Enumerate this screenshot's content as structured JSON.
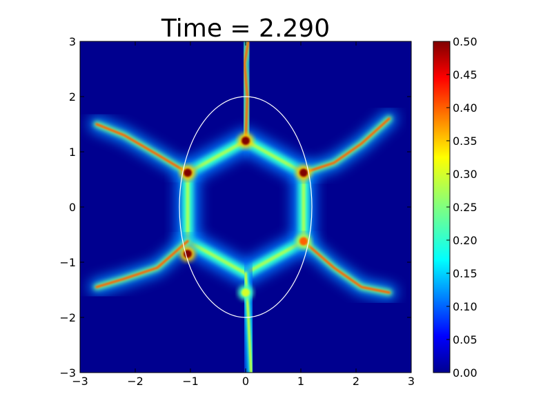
{
  "chart_data": {
    "type": "heatmap",
    "title": "Time = 2.290",
    "xlabel": "",
    "ylabel": "",
    "xlim": [
      -3,
      3
    ],
    "ylim": [
      -3,
      3
    ],
    "x_ticks": [
      "−3",
      "−2",
      "−1",
      "0",
      "1",
      "2",
      "3"
    ],
    "y_ticks": [
      "−3",
      "−2",
      "−1",
      "0",
      "1",
      "2",
      "3"
    ],
    "x_tick_values": [
      -3,
      -2,
      -1,
      0,
      1,
      2,
      3
    ],
    "y_tick_values": [
      -3,
      -2,
      -1,
      0,
      1,
      2,
      3
    ],
    "colormap": "jet",
    "colorbar": {
      "range": [
        0.0,
        0.5
      ],
      "ticks": [
        "0.00",
        "0.05",
        "0.10",
        "0.15",
        "0.20",
        "0.25",
        "0.30",
        "0.35",
        "0.40",
        "0.45",
        "0.50"
      ],
      "tick_values": [
        0.0,
        0.05,
        0.1,
        0.15,
        0.2,
        0.25,
        0.3,
        0.35,
        0.4,
        0.45,
        0.5
      ],
      "colors": [
        "#00008f",
        "#0000ff",
        "#00ffff",
        "#80ff80",
        "#ffff00",
        "#ff8000",
        "#ff0000",
        "#800000"
      ]
    },
    "grid": false,
    "overlay_ellipse": {
      "center": [
        0,
        0
      ],
      "semi_axes": [
        1.2,
        2.0
      ],
      "color": "#ffffff"
    },
    "field_features": {
      "background_value": 0.02,
      "hexagon_ring": {
        "vertices": [
          [
            0,
            1.2
          ],
          [
            1.05,
            0.62
          ],
          [
            1.05,
            -0.62
          ],
          [
            0,
            -1.2
          ],
          [
            -1.05,
            -0.62
          ],
          [
            -1.05,
            0.62
          ]
        ],
        "value": 0.2
      },
      "arms": [
        {
          "path": [
            [
              0,
              1.2
            ],
            [
              0.03,
              2.0
            ],
            [
              -0.02,
              2.6
            ],
            [
              0.05,
              3.0
            ]
          ],
          "value": 0.4
        },
        {
          "path": [
            [
              1.05,
              0.62
            ],
            [
              1.6,
              0.8
            ],
            [
              2.1,
              1.15
            ],
            [
              2.6,
              1.6
            ]
          ],
          "value": 0.4
        },
        {
          "path": [
            [
              1.05,
              -0.62
            ],
            [
              1.6,
              -1.1
            ],
            [
              2.1,
              -1.45
            ],
            [
              2.6,
              -1.55
            ]
          ],
          "value": 0.4
        },
        {
          "path": [
            [
              0,
              -1.2
            ],
            [
              0.05,
              -2.0
            ],
            [
              0.08,
              -2.6
            ],
            [
              0.1,
              -3.0
            ]
          ],
          "value": 0.3
        },
        {
          "path": [
            [
              -1.05,
              -0.62
            ],
            [
              -1.6,
              -1.1
            ],
            [
              -2.2,
              -1.3
            ],
            [
              -2.7,
              -1.45
            ]
          ],
          "value": 0.4
        },
        {
          "path": [
            [
              -1.05,
              0.62
            ],
            [
              -1.6,
              0.95
            ],
            [
              -2.2,
              1.3
            ],
            [
              -2.7,
              1.5
            ]
          ],
          "value": 0.4
        }
      ],
      "hotspots": [
        {
          "at": [
            0,
            1.2
          ],
          "value": 0.5
        },
        {
          "at": [
            1.05,
            0.62
          ],
          "value": 0.5
        },
        {
          "at": [
            -1.05,
            0.62
          ],
          "value": 0.5
        },
        {
          "at": [
            -1.05,
            -0.85
          ],
          "value": 0.5
        },
        {
          "at": [
            1.05,
            -0.62
          ],
          "value": 0.4
        },
        {
          "at": [
            0,
            -1.55
          ],
          "value": 0.3
        }
      ]
    }
  }
}
